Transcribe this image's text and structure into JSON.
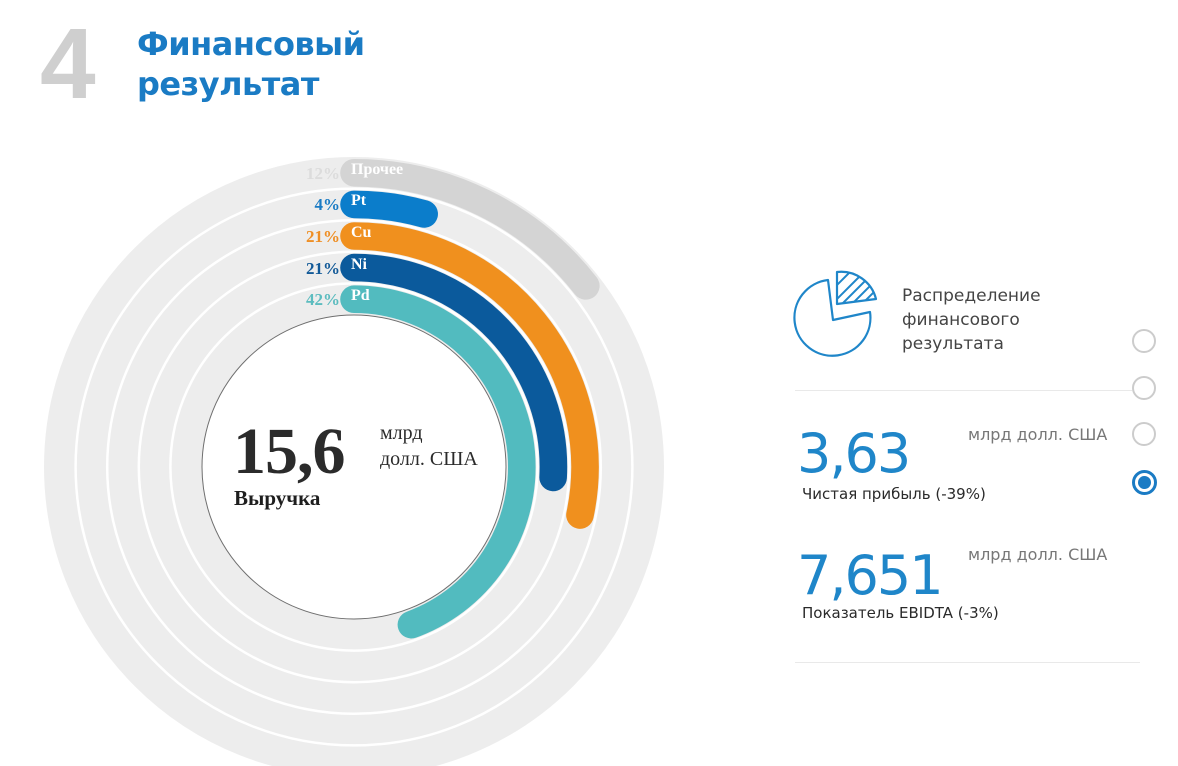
{
  "header": {
    "section_number": "4",
    "title_line1": "Финансовый",
    "title_line2": "результат"
  },
  "chart_data": {
    "type": "radial-bar",
    "title": "Выручка",
    "center": {
      "value": "15,6",
      "unit_line1": "млрд",
      "unit_line2": "долл. США",
      "label": "Выручка"
    },
    "categories": [
      "Прочее",
      "Pt",
      "Cu",
      "Ni",
      "Pd"
    ],
    "values": [
      12,
      4,
      21,
      21,
      42
    ],
    "value_labels": [
      "12%",
      "4%",
      "21%",
      "21%",
      "42%"
    ],
    "series": [
      {
        "name": "Прочее",
        "value": 12,
        "label": "12%",
        "color": "#d4d4d4",
        "label_color": "#dcdcdc"
      },
      {
        "name": "Pt",
        "value": 4,
        "label": "4%",
        "color": "#0b7dcb",
        "label_color": "#1a7bc4"
      },
      {
        "name": "Cu",
        "value": 21,
        "label": "21%",
        "color": "#f0901e",
        "label_color": "#ef8f25"
      },
      {
        "name": "Ni",
        "value": 21,
        "label": "21%",
        "color": "#0b5a9c",
        "label_color": "#135a98"
      },
      {
        "name": "Pd",
        "value": 42,
        "label": "42%",
        "color": "#52bbbf",
        "label_color": "#5cbcbf"
      }
    ],
    "track_color": "#ededed",
    "unit": "%"
  },
  "panel": {
    "icon": "pie-chart-icon",
    "title_line1": "Распределение",
    "title_line2": "финансового",
    "title_line3": "результата",
    "metrics": [
      {
        "value": "3,63",
        "unit": "млрд долл. США",
        "label": "Чистая прибыль (-39%)"
      },
      {
        "value": "7,651",
        "unit": "млрд долл. США",
        "label": "Показатель EBIDTA (-3%)"
      }
    ],
    "pagination": {
      "count": 4,
      "selected_index": 3
    }
  },
  "colors": {
    "accent": "#1a7bc4",
    "section_number": "#cfcfcf"
  }
}
